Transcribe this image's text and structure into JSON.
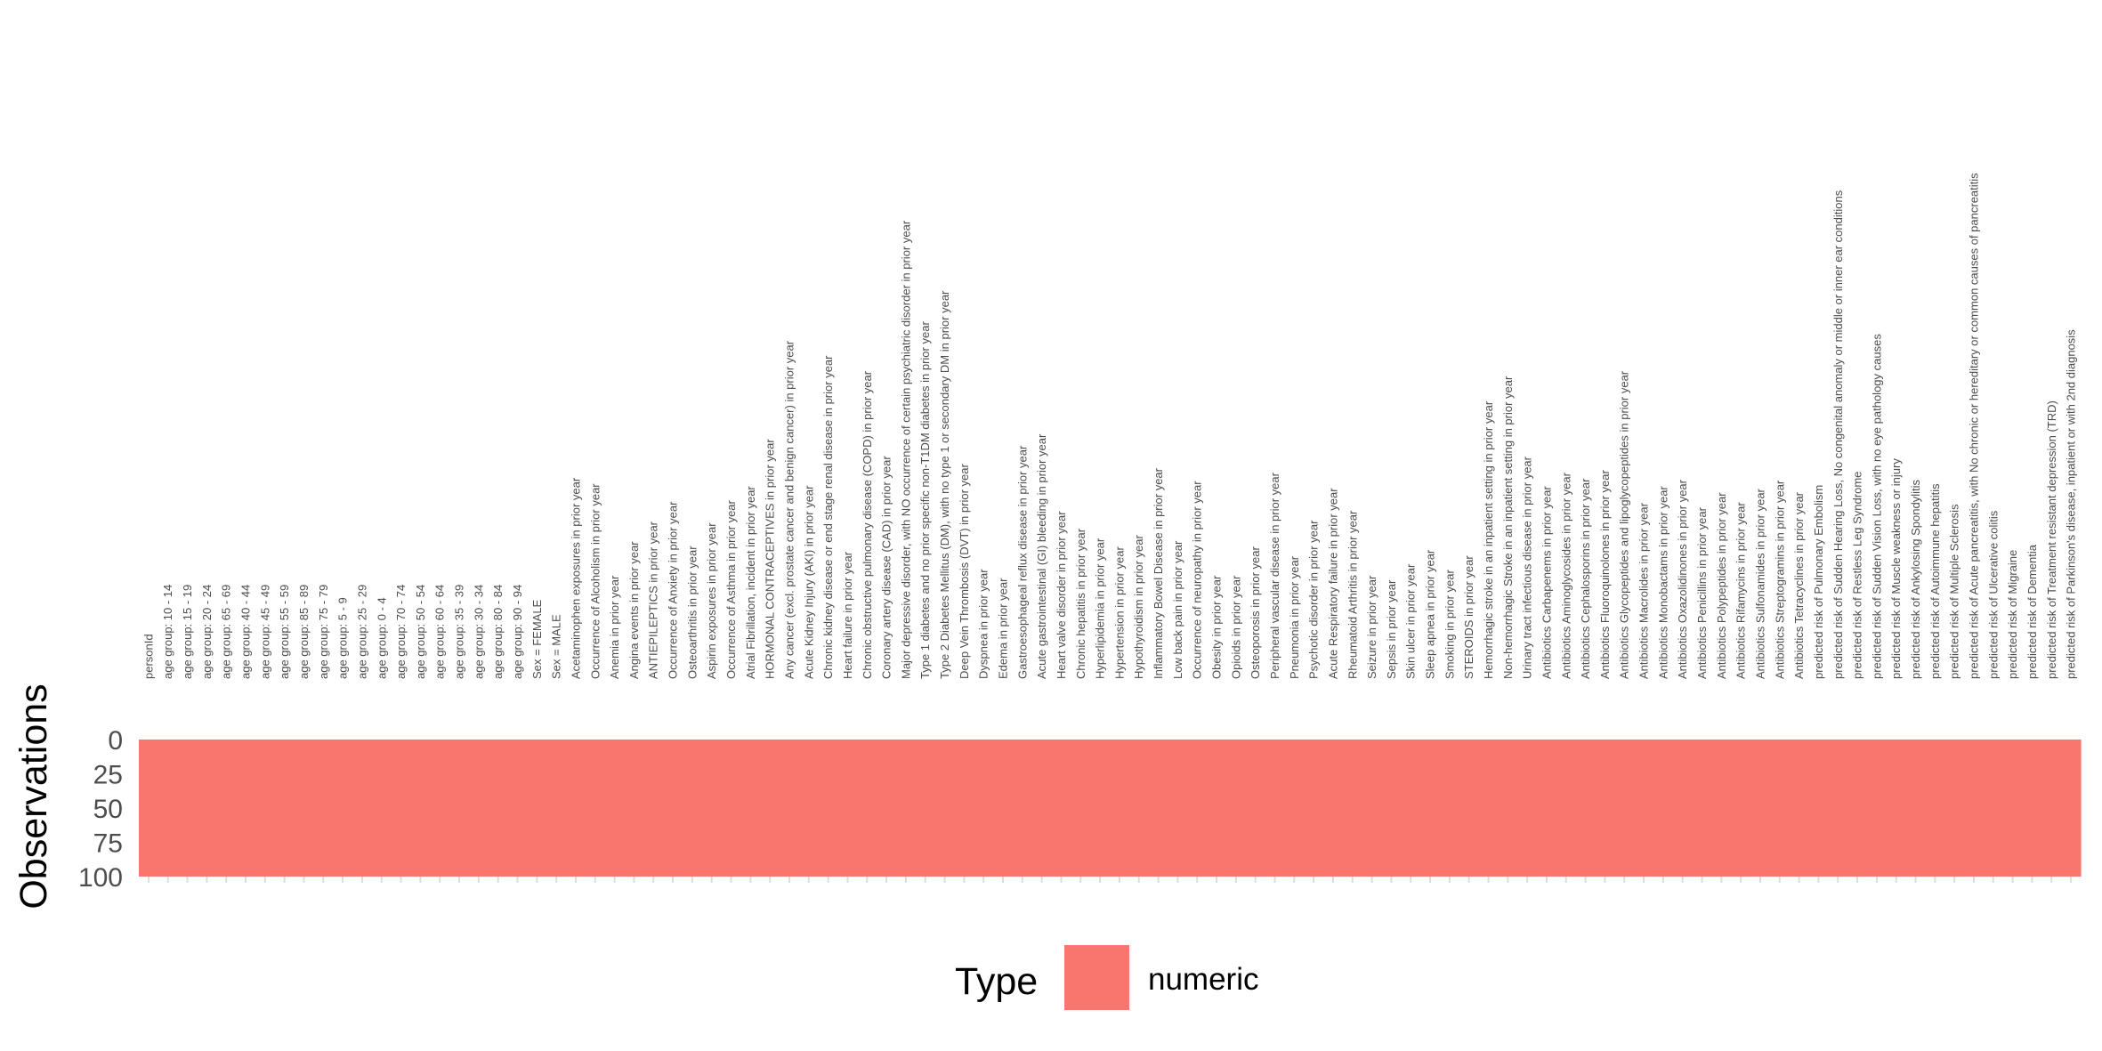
{
  "chart_data": {
    "type": "heatmap",
    "ylabel": "Observations",
    "xlabel": "",
    "title": "",
    "y_ticks": [
      "0",
      "25",
      "50",
      "75",
      "100"
    ],
    "ylim": [
      0,
      100
    ],
    "n_observations": 100,
    "legend": {
      "title": "Type",
      "entries": [
        {
          "label": "numeric",
          "color": "#F8766D"
        }
      ],
      "placement": "bottom"
    },
    "columns": [
      "personId",
      "age group:  10 -  14",
      "age group:  15 -  19",
      "age group:  20 -  24",
      "age group:  65 -  69",
      "age group:  40 -  44",
      "age group:  45 -  49",
      "age group:  55 -  59",
      "age group:  85 -  89",
      "age group:  75 -  79",
      "age group:   5 -   9",
      "age group:  25 -  29",
      "age group:   0 -   4",
      "age group:  70 -  74",
      "age group:  50 -  54",
      "age group:  60 -  64",
      "age group:  35 -  39",
      "age group:  30 -  34",
      "age group:  80 -  84",
      "age group:  90 -  94",
      "Sex = FEMALE",
      "Sex = MALE",
      "Acetaminophen exposures in prior year",
      "Occurrence of Alcoholism in prior year",
      "Anemia in prior year",
      "Angina events in prior year",
      "ANTIEPILEPTICS in prior year",
      "Occurrence of Anxiety in prior year",
      "Osteoarthritis in prior year",
      "Aspirin exposures in prior year",
      "Occurrence of Asthma in prior year",
      "Atrial Fibrillation, incident in prior year",
      "HORMONAL CONTRACEPTIVES in prior year",
      "Any cancer (excl. prostate cancer and benign cancer) in prior year",
      "Acute Kidney Injury (AKI) in prior year",
      "Chronic kidney disease or end stage renal disease in prior year",
      "Heart failure in prior year",
      "Chronic obstructive pulmonary disease (COPD) in prior year",
      "Coronary artery disease (CAD) in prior year",
      "Major depressive disorder, with NO occurrence of certain psychiatric disorder in prior year",
      "Type 1 diabetes and no prior specific non-T1DM diabetes in prior year",
      "Type 2 Diabetes Mellitus (DM), with no type 1 or secondary DM in prior year",
      "Deep Vein Thrombosis (DVT) in prior year",
      "Dyspnea in prior year",
      "Edema in prior year",
      "Gastroesophageal reflux disease in prior year",
      "Acute gastrointestinal (GI) bleeding in prior year",
      "Heart valve disorder in prior year",
      "Chronic hepatitis in prior year",
      "Hyperlipidemia in prior year",
      "Hypertension in prior year",
      "Hypothyroidism in prior year",
      "Inflammatory Bowel Disease in prior year",
      "Low back pain in prior year",
      "Occurrence of neuropathy in prior year",
      "Obesity in prior year",
      "Opioids in prior year",
      "Osteoporosis in prior year",
      "Peripheral vascular disease in prior year",
      "Pneumonia in prior year",
      "Psychotic disorder in prior year",
      "Acute Respiratory failure in prior year",
      "Rheumatoid Arthritis in prior year",
      "Seizure in prior year",
      "Sepsis in prior year",
      "Skin ulcer in prior year",
      "Sleep apnea in prior year",
      "Smoking in prior year",
      "STEROIDS in prior year",
      "Hemorrhagic stroke in an inpatient setting in prior year",
      "Non-hemorrhagic Stroke in an inpatient setting in prior year",
      "Urinary tract infectious disease in prior year",
      "Antibiotics Carbapenems in prior year",
      "Antibiotics Aminoglycosides in prior year",
      "Antibiotics Cephalosporins in prior year",
      "Antibiotics Fluoroquinolones in prior year",
      "Antibiotics Glycopeptides and lipoglycopeptides in prior year",
      "Antibiotics Macrolides in prior year",
      "Antibiotics Monobactams in prior year",
      "Antibiotics Oxazolidinones in prior year",
      "Antibiotics Penicillins in prior year",
      "Antibiotics Polypeptides in prior year",
      "Antibiotics Rifamycins in prior year",
      "Antibiotics Sulfonamides in prior year",
      "Antibiotics Streptogramins in prior year",
      "Antibiotics Tetracyclines in prior year",
      "predicted risk of Pulmonary Embolism",
      "predicted risk of Sudden Hearing Loss, No congenital anomaly or middle or inner ear conditions",
      "predicted risk of Restless Leg Syndrome",
      "predicted risk of Sudden Vision Loss, with no eye pathology causes",
      "predicted risk of Muscle weakness or injury",
      "predicted risk of Ankylosing Spondylitis",
      "predicted risk of Autoimmune hepatitis",
      "predicted risk of Multiple Sclerosis",
      "predicted risk of Acute pancreatitis, with No chronic or hereditary or common causes of pancreatitis",
      "predicted risk of Ulcerative colitis",
      "predicted risk of Migraine",
      "predicted risk of Dementia",
      "predicted risk of  Treatment resistant depression (TRD)",
      "predicted risk of Parkinson's disease, inpatient or with 2nd diagnosis"
    ],
    "column_types": "numeric"
  }
}
